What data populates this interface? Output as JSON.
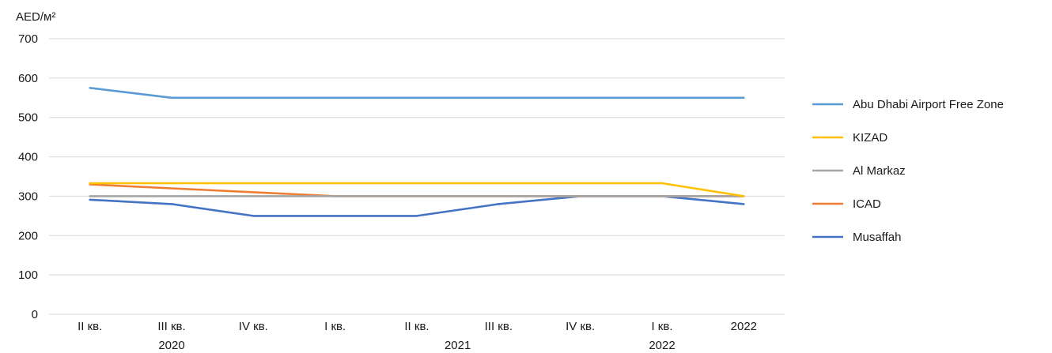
{
  "chart_data": {
    "type": "line",
    "ylabel": "AED/м²",
    "ylim": [
      0,
      700
    ],
    "yticks": [
      0,
      100,
      200,
      300,
      400,
      500,
      600,
      700
    ],
    "grid": true,
    "legend_position": "right",
    "categories": [
      "II кв.",
      "III кв.",
      "IV кв.",
      "I кв.",
      "II кв.",
      "III кв.",
      "IV кв.",
      "I кв.",
      "2022"
    ],
    "year_groups": [
      {
        "label": "2020",
        "from": 0,
        "to": 2
      },
      {
        "label": "2021",
        "from": 3,
        "to": 6
      },
      {
        "label": "2022",
        "from": 7,
        "to": 7
      }
    ],
    "series": [
      {
        "name": "Abu Dhabi Airport Free Zone",
        "color": "#5b9bd5",
        "values": [
          575,
          550,
          550,
          550,
          550,
          550,
          550,
          550,
          550
        ]
      },
      {
        "name": "KIZAD",
        "color": "#ffc000",
        "values": [
          333,
          333,
          333,
          333,
          333,
          333,
          333,
          333,
          300
        ]
      },
      {
        "name": "Al Markaz",
        "color": "#a5a5a5",
        "values": [
          300,
          300,
          300,
          300,
          300,
          300,
          300,
          300,
          300
        ]
      },
      {
        "name": "ICAD",
        "color": "#ed7d31",
        "values": [
          330,
          320,
          310,
          300,
          300,
          300,
          300,
          300,
          300
        ]
      },
      {
        "name": "Musaffah",
        "color": "#4472c4",
        "values": [
          291,
          280,
          250,
          250,
          250,
          280,
          300,
          300,
          280
        ]
      }
    ]
  }
}
